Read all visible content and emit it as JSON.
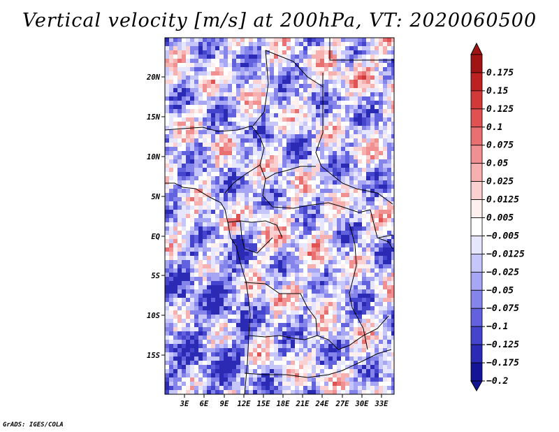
{
  "title": "Vertical velocity [m/s] at 200hPa, VT: 2020060500",
  "footer": "GrADS: IGES/COLA",
  "map": {
    "lat_labels": [
      "20N",
      "15N",
      "10N",
      "5N",
      "EQ",
      "5S",
      "10S",
      "15S"
    ],
    "lon_labels": [
      "3E",
      "6E",
      "9E",
      "12E",
      "15E",
      "18E",
      "21E",
      "24E",
      "27E",
      "30E",
      "33E"
    ]
  },
  "colorbar": {
    "labels": [
      "0.175",
      "0.15",
      "0.125",
      "0.1",
      "0.075",
      "0.05",
      "0.025",
      "0.0125",
      "0.005",
      "−0.005",
      "−0.0125",
      "−0.025",
      "−0.05",
      "−0.075",
      "−0.1",
      "−0.125",
      "−0.175",
      "−0.2"
    ],
    "colors": [
      "#a01414",
      "#bd2222",
      "#d23a3a",
      "#e05252",
      "#e87070",
      "#f09090",
      "#f6b0b0",
      "#fbd0d0",
      "#fff0f0",
      "#ffffff",
      "#e6e6ff",
      "#c6c6fb",
      "#a6a6f4",
      "#8484ea",
      "#6262de",
      "#4444cc",
      "#2a2ab4",
      "#141496"
    ]
  }
}
